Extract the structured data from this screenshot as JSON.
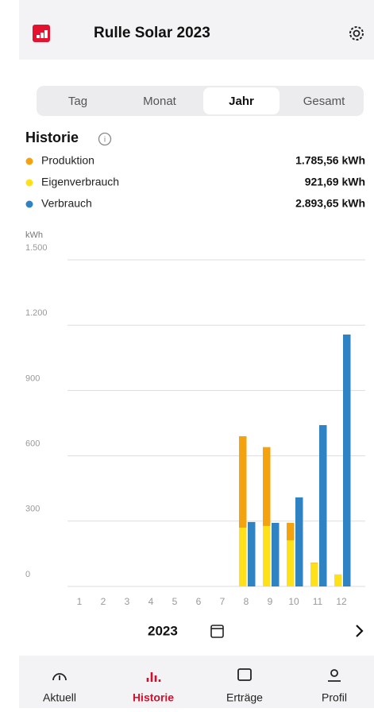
{
  "header": {
    "title": "Rulle Solar 2023"
  },
  "tabs": [
    "Tag",
    "Monat",
    "Jahr",
    "Gesamt"
  ],
  "selected_tab": 2,
  "section_title": "Historie",
  "totals": [
    "1.785,56 kWh",
    "921,69 kWh",
    "2.893,65 kWh"
  ],
  "chart_data": {
    "type": "bar",
    "y_label": "kWh",
    "categories": [
      "1",
      "2",
      "3",
      "4",
      "5",
      "6",
      "7",
      "8",
      "9",
      "10",
      "11",
      "12"
    ],
    "series": [
      {
        "name": "Produktion",
        "color": "#f5a20f",
        "values": [
          0,
          0,
          0,
          0,
          0,
          0,
          0,
          690,
          640,
          292,
          109,
          55
        ]
      },
      {
        "name": "Eigenverbrauch",
        "color": "#ffe119",
        "values": [
          0,
          0,
          0,
          0,
          0,
          0,
          0,
          270,
          278,
          212,
          107,
          55
        ]
      },
      {
        "name": "Verbrauch",
        "color": "#2f83c3",
        "values": [
          0,
          0,
          0,
          0,
          0,
          0,
          0,
          296,
          292,
          409,
          741,
          1157
        ]
      }
    ],
    "ylim": [
      0,
      1500
    ],
    "yticks": [
      0,
      300,
      600,
      900,
      {
        "value": 1200,
        "label": "1.200"
      },
      {
        "value": 1500,
        "label": "1.500"
      }
    ],
    "grid": true
  },
  "year": "2023",
  "nav": [
    "Aktuell",
    "Historie",
    "Erträge",
    "Profil"
  ],
  "active_nav": 1
}
